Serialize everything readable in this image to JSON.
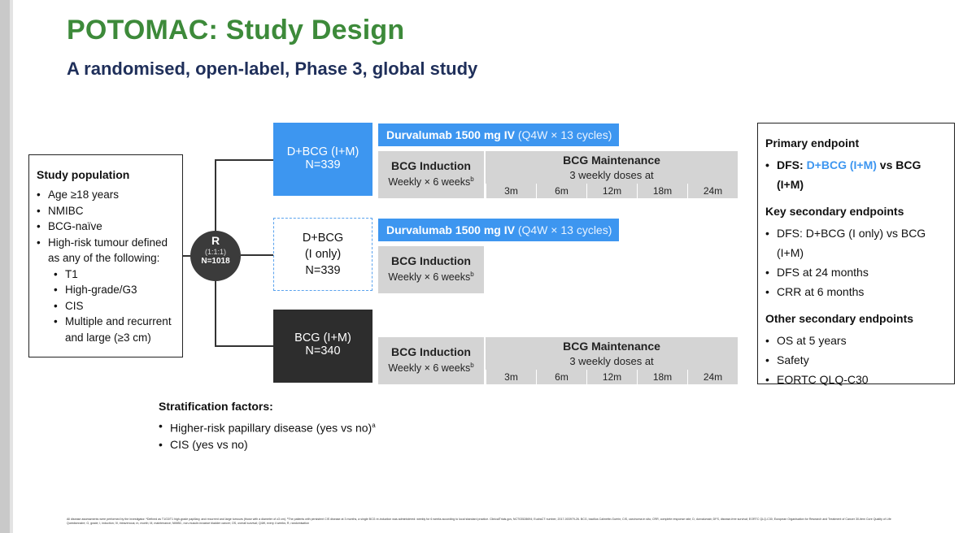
{
  "title": "POTOMAC: Study Design",
  "subtitle": "A randomised, open-label, Phase 3, global study",
  "population": {
    "title": "Study population",
    "items": [
      "Age ≥18 years",
      "NMIBC",
      "BCG-naïve",
      "High-risk tumour defined as any of the following:"
    ],
    "subitems": [
      "T1",
      "High-grade/G3",
      "CIS",
      "Multiple and recurrent and large (≥3 cm)"
    ]
  },
  "randomisation": {
    "letter": "R",
    "ratio": "(1:1:1)",
    "n": "N=1018"
  },
  "arms": [
    {
      "name": "D+BCG (I+M)",
      "n": "N=339"
    },
    {
      "name": "D+BCG",
      "name2": "(I only)",
      "n": "N=339"
    },
    {
      "name": "BCG (I+M)",
      "n": "N=340"
    }
  ],
  "durvalumab": {
    "label": "Durvalumab 1500 mg IV",
    "schedule": "(Q4W × 13 cycles)"
  },
  "induction": {
    "label": "BCG Induction",
    "schedule": "Weekly × 6 weeks",
    "sup": "b"
  },
  "maintenance": {
    "label": "BCG Maintenance",
    "schedule": "3 weekly doses at",
    "timepoints": [
      "3m",
      "6m",
      "12m",
      "18m",
      "24m"
    ]
  },
  "endpoints": {
    "primary_title": "Primary endpoint",
    "primary_prefix": "DFS: ",
    "primary_highlight": "D+BCG (I+M)",
    "primary_suffix": " vs BCG (I+M)",
    "key_title": "Key secondary endpoints",
    "key_items": [
      "DFS: D+BCG (I only) vs BCG (I+M)",
      "DFS at 24 months",
      "CRR at 6 months"
    ],
    "other_title": "Other secondary endpoints",
    "other_items": [
      "OS at 5 years",
      "Safety",
      "EORTC QLQ-C30"
    ]
  },
  "stratification": {
    "title": "Stratification factors:",
    "item1": "Higher-risk papillary disease (yes vs no)",
    "item1_sup": "a",
    "item2": "CIS (yes vs no)"
  },
  "footnote": "All disease assessments were performed by the investigator. ᵃDefined as T1G3/T1 high-grade papillary, and recurrent and large tumours (those with a diameter of ≥3 cm). ᵇThe patients with persistent CIS disease at 3 months, a single BCG re-induction was administered: weekly for 6 weeks according to local standard practice. ClinicalTrials.gov, NCT03528694; EudraCT number, 2017-003979-26. BCG, bacillus Calmette-Guérin; CIS, carcinoma in situ; CRR, complete response rate; D, durvalumab; DFS, disease-free survival; EORTC QLQ-C30, European Organisation for Research and Treatment of Cancer 30-item Core Quality of Life Questionnaire; G, grade; I, induction; IV, intravenous; m, month; M, maintenance; NMIBC, non-muscle-invasive bladder cancer; OS, overall survival; Q4W, every 4 weeks; R, randomisation"
}
